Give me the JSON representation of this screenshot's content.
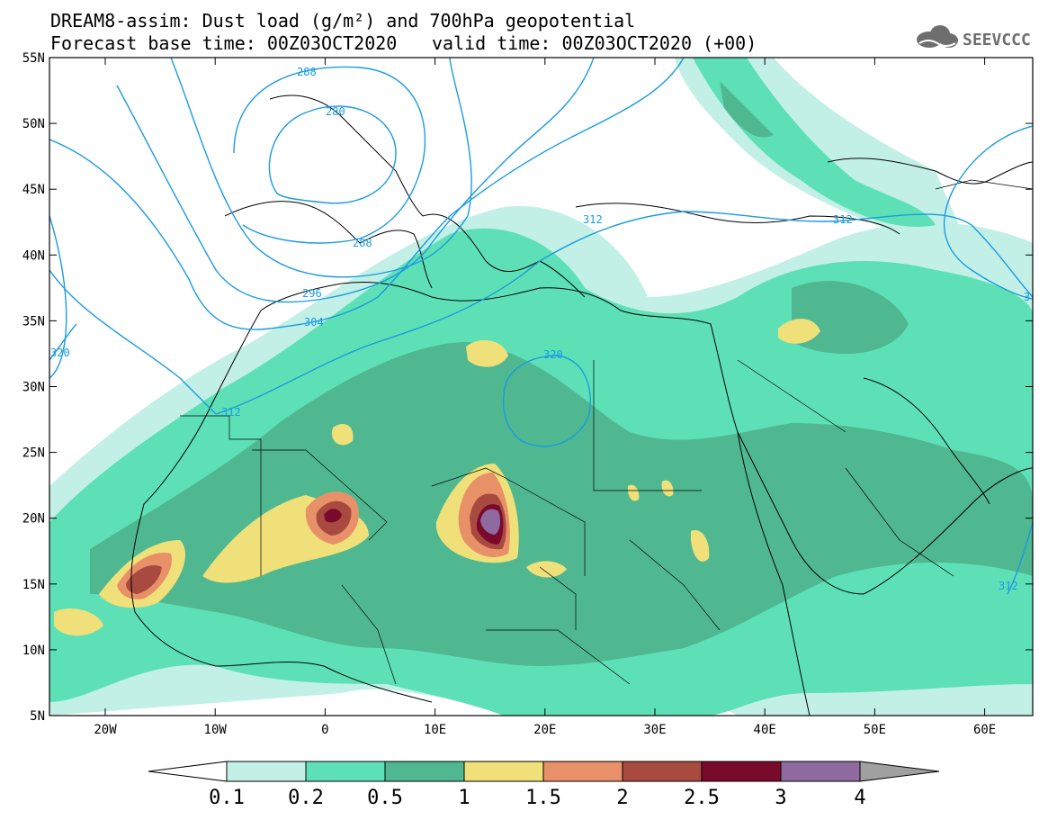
{
  "title": {
    "line1": "DREAM8-assim: Dust load (g/m²) and 700hPa geopotential",
    "line2_left": "Forecast base time: 00Z03OCT2020",
    "line2_right": "valid time: 00Z03OCT2020 (+00)"
  },
  "logo": {
    "text": "SEEVCCC",
    "icon": "cloud-icon"
  },
  "map": {
    "lat_labels": [
      "55N",
      "50N",
      "45N",
      "40N",
      "35N",
      "30N",
      "25N",
      "20N",
      "15N",
      "10N",
      "5N"
    ],
    "lon_labels": [
      "20W",
      "10W",
      "0",
      "10E",
      "20E",
      "30E",
      "40E",
      "50E",
      "60E"
    ],
    "contour_labels": [
      {
        "text": "288"
      },
      {
        "text": "280"
      },
      {
        "text": "288"
      },
      {
        "text": "296"
      },
      {
        "text": "304"
      },
      {
        "text": "312"
      },
      {
        "text": "312"
      },
      {
        "text": "312"
      },
      {
        "text": "320"
      },
      {
        "text": "320"
      },
      {
        "text": "312"
      },
      {
        "text": "3"
      }
    ]
  },
  "colorbar": {
    "labels": [
      "0.1",
      "0.2",
      "0.5",
      "1",
      "1.5",
      "2",
      "2.5",
      "3",
      "4"
    ],
    "colors": [
      "#c2f0e6",
      "#5ee0b6",
      "#50b891",
      "#f0e07a",
      "#e89068",
      "#a84a40",
      "#7a0a2c",
      "#8e6aa0"
    ],
    "end_low_color": "#ffffff",
    "end_high_color": "#a0a0a0"
  },
  "colors": {
    "contour": "#1a9be0",
    "land_dust_low": "#c2f0e6",
    "land_dust_mid": "#5ee0b6",
    "land_dust_high": "#50b891"
  }
}
